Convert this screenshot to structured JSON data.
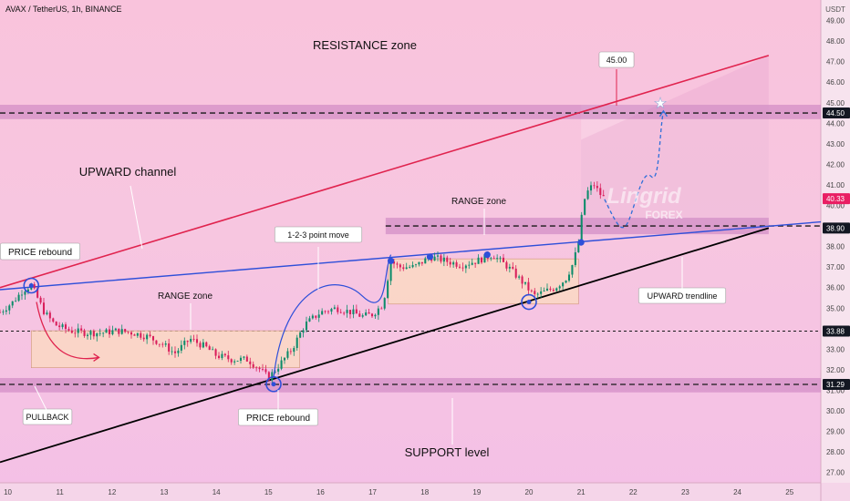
{
  "chart_data": {
    "type": "candlestick",
    "title": "AVAX / TetherUS, 1h, BINANCE",
    "currency": "USDT",
    "ylim": [
      26.5,
      50.0
    ],
    "xlim": [
      9.85,
      25.6
    ],
    "y_ticks": [
      "27.00",
      "28.00",
      "29.00",
      "30.00",
      "31.00",
      "32.00",
      "33.00",
      "34.00",
      "35.00",
      "36.00",
      "37.00",
      "38.00",
      "39.00",
      "40.00",
      "41.00",
      "42.00",
      "43.00",
      "44.00",
      "45.00",
      "46.00",
      "47.00",
      "48.00",
      "49.00"
    ],
    "x_ticks": [
      {
        "v": 10,
        "label": "10"
      },
      {
        "v": 11,
        "label": "11"
      },
      {
        "v": 12,
        "label": "12"
      },
      {
        "v": 13,
        "label": "13"
      },
      {
        "v": 14,
        "label": "14"
      },
      {
        "v": 15,
        "label": "15"
      },
      {
        "v": 16,
        "label": "16"
      },
      {
        "v": 17,
        "label": "17"
      },
      {
        "v": 18,
        "label": "18"
      },
      {
        "v": 19,
        "label": "19"
      },
      {
        "v": 20,
        "label": "20"
      },
      {
        "v": 21,
        "label": "21"
      },
      {
        "v": 22,
        "label": "22"
      },
      {
        "v": 23,
        "label": "23"
      },
      {
        "v": 24,
        "label": "24"
      },
      {
        "v": 25,
        "label": "25"
      }
    ],
    "price_badges": [
      {
        "price": 44.5,
        "label": "44.50",
        "bg": "#131722",
        "fg": "#ffffff"
      },
      {
        "price": 40.33,
        "label": "40.33",
        "bg": "#e91e63",
        "fg": "#ffffff"
      },
      {
        "price": 38.9,
        "label": "38.90",
        "bg": "#131722",
        "fg": "#ffffff"
      },
      {
        "price": 33.88,
        "label": "33.88",
        "bg": "#131722",
        "fg": "#ffffff"
      },
      {
        "price": 31.29,
        "label": "31.29",
        "bg": "#131722",
        "fg": "#ffffff"
      }
    ],
    "price_path": [
      [
        9.85,
        34.8
      ],
      [
        10.1,
        35.3
      ],
      [
        10.3,
        35.9
      ],
      [
        10.45,
        36.1
      ],
      [
        10.55,
        35.6
      ],
      [
        10.7,
        34.8
      ],
      [
        10.9,
        34.2
      ],
      [
        11.2,
        33.9
      ],
      [
        11.5,
        33.8
      ],
      [
        11.8,
        33.8
      ],
      [
        12.1,
        33.9
      ],
      [
        12.4,
        33.8
      ],
      [
        12.7,
        33.6
      ],
      [
        13.0,
        33.2
      ],
      [
        13.2,
        32.8
      ],
      [
        13.5,
        33.5
      ],
      [
        13.8,
        33.1
      ],
      [
        14.0,
        32.7
      ],
      [
        14.3,
        32.5
      ],
      [
        14.6,
        32.5
      ],
      [
        14.85,
        32.0
      ],
      [
        15.0,
        31.6
      ],
      [
        15.2,
        32.2
      ],
      [
        15.45,
        33.0
      ],
      [
        15.7,
        34.2
      ],
      [
        16.0,
        34.8
      ],
      [
        16.3,
        35.0
      ],
      [
        16.6,
        34.8
      ],
      [
        16.8,
        34.6
      ],
      [
        17.0,
        34.7
      ],
      [
        17.2,
        35.2
      ],
      [
        17.35,
        37.3
      ],
      [
        17.5,
        37.0
      ],
      [
        17.8,
        37.0
      ],
      [
        18.1,
        37.5
      ],
      [
        18.4,
        37.3
      ],
      [
        18.7,
        37.1
      ],
      [
        19.0,
        37.3
      ],
      [
        19.3,
        37.6
      ],
      [
        19.6,
        37.0
      ],
      [
        19.9,
        36.2
      ],
      [
        20.1,
        35.6
      ],
      [
        20.3,
        35.8
      ],
      [
        20.5,
        36.0
      ],
      [
        20.7,
        36.4
      ],
      [
        20.85,
        37.2
      ],
      [
        20.95,
        38.2
      ],
      [
        21.05,
        40.2
      ],
      [
        21.15,
        40.8
      ],
      [
        21.25,
        41.0
      ],
      [
        21.35,
        40.6
      ],
      [
        21.45,
        40.33
      ]
    ],
    "levels": [
      {
        "from": 44.2,
        "to": 44.9,
        "dashed_at": 44.5,
        "label": "RESISTANCE zone"
      },
      {
        "from": 30.9,
        "to": 31.6,
        "dashed_at": 31.29,
        "label": "SUPPORT level"
      }
    ],
    "dashed_level": 33.88,
    "upper_channel": {
      "x1": 9.85,
      "y1": 36.0,
      "x2": 24.6,
      "y2": 47.3,
      "color": "#e0234e"
    },
    "mid_trendline": {
      "x1": 9.85,
      "y1": 35.9,
      "x2": 25.6,
      "y2": 39.2,
      "color": "#2e4fd9"
    },
    "lower_trendline": {
      "x1": 9.85,
      "y1": 27.5,
      "x2": 24.6,
      "y2": 38.9,
      "color": "#000000"
    },
    "range_zones": [
      {
        "x1": 10.45,
        "x2": 15.6,
        "y1": 32.1,
        "y2": 33.9,
        "label": "RANGE zone"
      },
      {
        "x1": 17.3,
        "x2": 20.95,
        "y1": 35.2,
        "y2": 37.4,
        "label": "RANGE zone"
      }
    ],
    "upper_range_band": {
      "x1": 17.25,
      "x2": 24.6,
      "y1": 38.6,
      "y2": 39.4,
      "dashed_at": 39.0
    },
    "annotations": {
      "resistance": "RESISTANCE zone",
      "upward_channel": "UPWARD channel",
      "range_zone_left": "RANGE zone",
      "range_zone_right": "RANGE zone",
      "price_rebound_left": "PRICE rebound",
      "price_rebound_mid": "PRICE rebound",
      "pullback": "PULLBACK",
      "point_move": "1-2-3 point move",
      "upward_trendline": "UPWARD trendline",
      "support": "SUPPORT level",
      "target": "45.00",
      "watermark_name": "Lingrid",
      "watermark_sub": "FOREX"
    },
    "markers": [
      {
        "x": 10.45,
        "y": 36.1
      },
      {
        "x": 15.1,
        "y": 31.3
      },
      {
        "x": 20.0,
        "y": 35.3
      },
      {
        "x": 17.35,
        "y": 37.3
      },
      {
        "x": 18.1,
        "y": 37.5
      },
      {
        "x": 19.2,
        "y": 37.6
      },
      {
        "x": 21.0,
        "y": 38.2
      }
    ]
  }
}
